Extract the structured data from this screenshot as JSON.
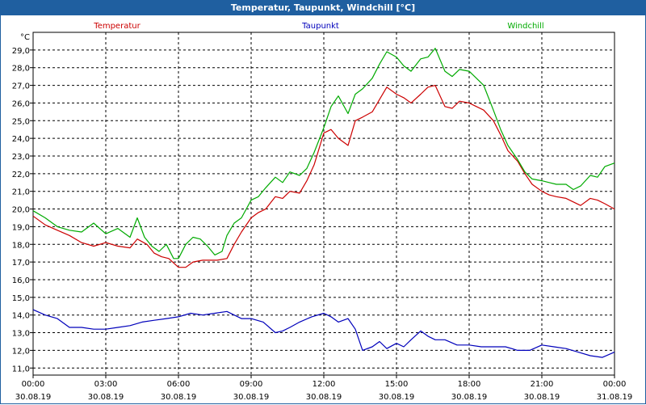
{
  "window": {
    "title": "Temperatur, Taupunkt, Windchill [°C]"
  },
  "colors": {
    "frame": "#1f5fa0",
    "temperatur": "#cc0000",
    "taupunkt": "#0000bb",
    "windchill": "#00aa00",
    "grid": "#000000"
  },
  "chart_data": {
    "type": "line",
    "title": "Temperatur, Taupunkt, Windchill [°C]",
    "ylabel": "°C",
    "ylim": [
      10.6,
      30.0
    ],
    "xlim": [
      0,
      24
    ],
    "y_ticks": [
      "29,0",
      "28,0",
      "27,0",
      "26,0",
      "25,0",
      "24,0",
      "23,0",
      "22,0",
      "21,0",
      "20,0",
      "19,0",
      "18,0",
      "17,0",
      "16,0",
      "15,0",
      "14,0",
      "13,0",
      "12,0",
      "11,0"
    ],
    "x_ticks": [
      {
        "time": "00:00",
        "date": "30.08.19"
      },
      {
        "time": "03:00",
        "date": "30.08.19"
      },
      {
        "time": "06:00",
        "date": "30.08.19"
      },
      {
        "time": "09:00",
        "date": "30.08.19"
      },
      {
        "time": "12:00",
        "date": "30.08.19"
      },
      {
        "time": "15:00",
        "date": "30.08.19"
      },
      {
        "time": "18:00",
        "date": "30.08.19"
      },
      {
        "time": "21:00",
        "date": "30.08.19"
      },
      {
        "time": "00:00",
        "date": "31.08.19"
      }
    ],
    "grid": true,
    "series": [
      {
        "name": "Temperatur",
        "color": "#cc0000",
        "x": [
          0,
          0.5,
          1,
          1.5,
          2,
          2.5,
          3,
          3.5,
          4,
          4.3,
          4.7,
          5,
          5.3,
          5.6,
          6,
          6.3,
          6.6,
          7,
          7.3,
          7.6,
          8,
          8.3,
          8.6,
          9,
          9.3,
          9.6,
          10,
          10.3,
          10.6,
          11,
          11.3,
          11.6,
          12,
          12.3,
          12.6,
          13,
          13.3,
          13.6,
          14,
          14.3,
          14.6,
          15,
          15.3,
          15.6,
          16,
          16.3,
          16.6,
          17,
          17.3,
          17.6,
          18,
          18.3,
          18.6,
          19,
          19.3,
          19.6,
          20,
          20.3,
          20.6,
          21,
          21.3,
          21.6,
          22,
          22.3,
          22.6,
          23,
          23.3,
          23.6,
          24
        ],
        "values": [
          19.6,
          19.1,
          18.8,
          18.5,
          18.1,
          17.9,
          18.1,
          17.9,
          17.8,
          18.3,
          18.0,
          17.5,
          17.3,
          17.2,
          16.7,
          16.7,
          17.0,
          17.1,
          17.1,
          17.1,
          17.2,
          18.0,
          18.7,
          19.5,
          19.8,
          20.0,
          20.7,
          20.6,
          21.0,
          20.9,
          21.6,
          22.5,
          24.3,
          24.5,
          24.0,
          23.6,
          25.0,
          25.2,
          25.5,
          26.2,
          26.9,
          26.5,
          26.3,
          26.0,
          26.5,
          26.9,
          27.0,
          25.8,
          25.7,
          26.1,
          26.0,
          25.8,
          25.6,
          25.0,
          24.2,
          23.3,
          22.7,
          22.0,
          21.4,
          21.0,
          20.8,
          20.7,
          20.6,
          20.4,
          20.2,
          20.6,
          20.5,
          20.3,
          20.0
        ]
      },
      {
        "name": "Taupunkt",
        "color": "#0000bb",
        "x": [
          0,
          0.5,
          1,
          1.5,
          2,
          2.5,
          3,
          3.5,
          4,
          4.5,
          5,
          5.5,
          6,
          6.5,
          7,
          7.5,
          8,
          8.3,
          8.6,
          9,
          9.5,
          10,
          10.3,
          10.6,
          11,
          11.5,
          12,
          12.3,
          12.6,
          13,
          13.3,
          13.6,
          14,
          14.3,
          14.6,
          15,
          15.3,
          15.6,
          16,
          16.3,
          16.6,
          17,
          17.5,
          18,
          18.5,
          19,
          19.5,
          20,
          20.5,
          21,
          21.5,
          22,
          22.5,
          23,
          23.5,
          24
        ],
        "values": [
          14.3,
          14.0,
          13.8,
          13.3,
          13.3,
          13.2,
          13.2,
          13.3,
          13.4,
          13.6,
          13.7,
          13.8,
          13.9,
          14.1,
          14.0,
          14.1,
          14.2,
          14.0,
          13.8,
          13.8,
          13.6,
          13.0,
          13.1,
          13.3,
          13.6,
          13.9,
          14.1,
          13.9,
          13.6,
          13.8,
          13.2,
          12.0,
          12.2,
          12.5,
          12.1,
          12.4,
          12.2,
          12.6,
          13.1,
          12.8,
          12.6,
          12.6,
          12.3,
          12.3,
          12.2,
          12.2,
          12.2,
          12.0,
          12.0,
          12.3,
          12.2,
          12.1,
          11.9,
          11.7,
          11.6,
          11.9
        ]
      },
      {
        "name": "Windchill",
        "color": "#00aa00",
        "x": [
          0,
          0.5,
          1,
          1.5,
          2,
          2.5,
          3,
          3.5,
          4,
          4.3,
          4.6,
          4.9,
          5.2,
          5.5,
          5.8,
          6,
          6.3,
          6.6,
          6.9,
          7.2,
          7.5,
          7.8,
          8,
          8.3,
          8.6,
          9,
          9.3,
          9.6,
          10,
          10.3,
          10.6,
          11,
          11.3,
          11.6,
          12,
          12.3,
          12.6,
          13,
          13.3,
          13.6,
          14,
          14.3,
          14.6,
          15,
          15.3,
          15.6,
          16,
          16.3,
          16.6,
          17,
          17.3,
          17.6,
          18,
          18.3,
          18.6,
          19,
          19.3,
          19.6,
          20,
          20.3,
          20.6,
          21,
          21.3,
          21.6,
          22,
          22.3,
          22.6,
          23,
          23.3,
          23.6,
          24
        ],
        "values": [
          19.9,
          19.5,
          19.0,
          18.8,
          18.7,
          19.2,
          18.6,
          18.9,
          18.4,
          19.5,
          18.4,
          17.9,
          17.6,
          18.0,
          17.2,
          17.2,
          18.0,
          18.4,
          18.3,
          17.9,
          17.4,
          17.6,
          18.5,
          19.2,
          19.5,
          20.5,
          20.7,
          21.2,
          21.8,
          21.5,
          22.1,
          21.9,
          22.3,
          23.2,
          24.6,
          25.8,
          26.4,
          25.4,
          26.5,
          26.8,
          27.4,
          28.2,
          28.9,
          28.6,
          28.1,
          27.8,
          28.5,
          28.6,
          29.1,
          27.8,
          27.5,
          27.9,
          27.8,
          27.4,
          27.0,
          25.6,
          24.5,
          23.6,
          22.8,
          22.1,
          21.7,
          21.6,
          21.5,
          21.4,
          21.4,
          21.1,
          21.3,
          21.9,
          21.8,
          22.4,
          22.6
        ]
      }
    ]
  }
}
